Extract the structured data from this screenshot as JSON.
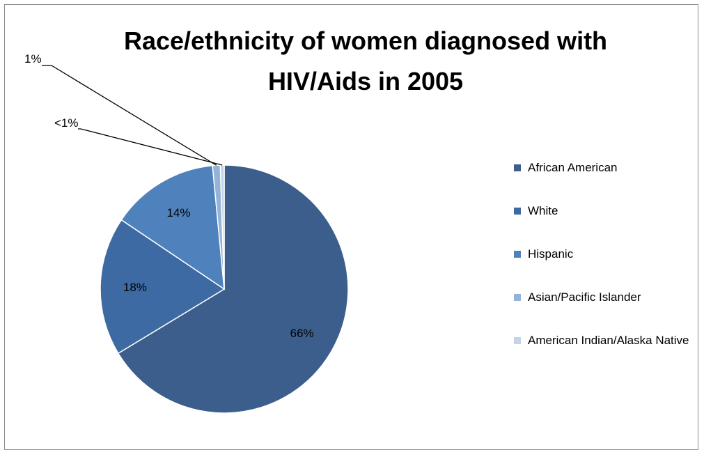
{
  "chart_data": {
    "type": "pie",
    "title": "Race/ethnicity of women diagnosed with HIV/Aids in 2005",
    "title_lines": [
      "Race/ethnicity of women diagnosed with",
      "HIV/Aids in 2005"
    ],
    "categories": [
      "African American",
      "White",
      "Hispanic",
      "Asian/Pacific Islander",
      "American Indian/Alaska Native"
    ],
    "values": [
      66,
      18,
      14,
      1,
      0.5
    ],
    "data_labels": [
      "66%",
      "18%",
      "14%",
      "1%",
      "<1%"
    ],
    "colors": [
      "#3c5e8c",
      "#3d6aa2",
      "#4f81bd",
      "#95b3d7",
      "#c5d3e8"
    ],
    "legend_position": "right",
    "start_angle_degrees": 0,
    "direction": "clockwise"
  }
}
